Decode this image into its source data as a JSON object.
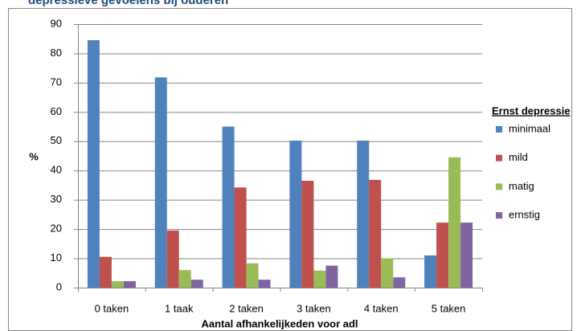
{
  "chart_data": {
    "type": "bar",
    "title": "depressieve gevoelens bij ouderen",
    "x_label": "Aantal afhankelijkeden voor adl",
    "y_label": "%",
    "categories": [
      "0 taken",
      "1 taak",
      "2 taken",
      "3 taken",
      "4 taken",
      "5 taken"
    ],
    "series": [
      {
        "name": "minimaal",
        "color": "#4f81bd",
        "values": [
          84.5,
          71.8,
          55,
          50.2,
          50.2,
          11
        ]
      },
      {
        "name": "mild",
        "color": "#c0504d",
        "values": [
          10.5,
          19.5,
          34.2,
          36.5,
          36.8,
          22.2
        ]
      },
      {
        "name": "matig",
        "color": "#9bbb59",
        "values": [
          2.2,
          6,
          8.3,
          5.8,
          10,
          44.5
        ]
      },
      {
        "name": "ernstig",
        "color": "#8064a2",
        "values": [
          2.2,
          2.7,
          2.7,
          7.5,
          3.5,
          22.2
        ]
      }
    ],
    "legend_title": "Ernst depressie",
    "legend": "right",
    "ylim": [
      0,
      90
    ],
    "yticks": [
      0,
      10,
      20,
      30,
      40,
      50,
      60,
      70,
      80,
      90
    ],
    "grid": true
  }
}
